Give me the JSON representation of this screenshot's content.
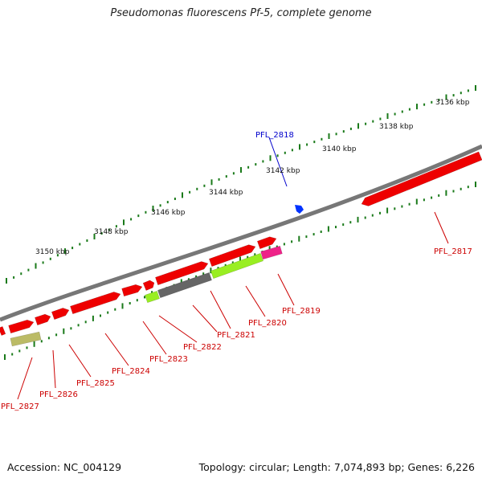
{
  "title": "Pseudomonas fluorescens Pf-5, complete genome",
  "footer": {
    "accession": "Accession: NC_004129",
    "summary": "Topology: circular; Length: 7,074,893 bp; Genes: 6,226"
  },
  "colors": {
    "backbone": "#777777",
    "gene_forward": "#ee0000",
    "gene_label": "#cc0000",
    "highlight_label": "#0000cc",
    "tick": "#1a7a1a",
    "lime": "#99ee22",
    "gray_gene": "#666666",
    "magenta": "#ee2288",
    "olive": "#bbbb66",
    "marker": "#0033ff"
  },
  "scale_labels": [
    "3136 kbp",
    "3138 kbp",
    "3140 kbp",
    "3142 kbp",
    "3144 kbp",
    "3146 kbp",
    "3148 kbp",
    "3150 kbp"
  ],
  "gene_labels": [
    "PFL_2817",
    "PFL_2818",
    "PFL_2819",
    "PFL_2820",
    "PFL_2821",
    "PFL_2822",
    "PFL_2823",
    "PFL_2824",
    "PFL_2825",
    "PFL_2826",
    "PFL_2827"
  ],
  "highlight_gene": "PFL_2818"
}
